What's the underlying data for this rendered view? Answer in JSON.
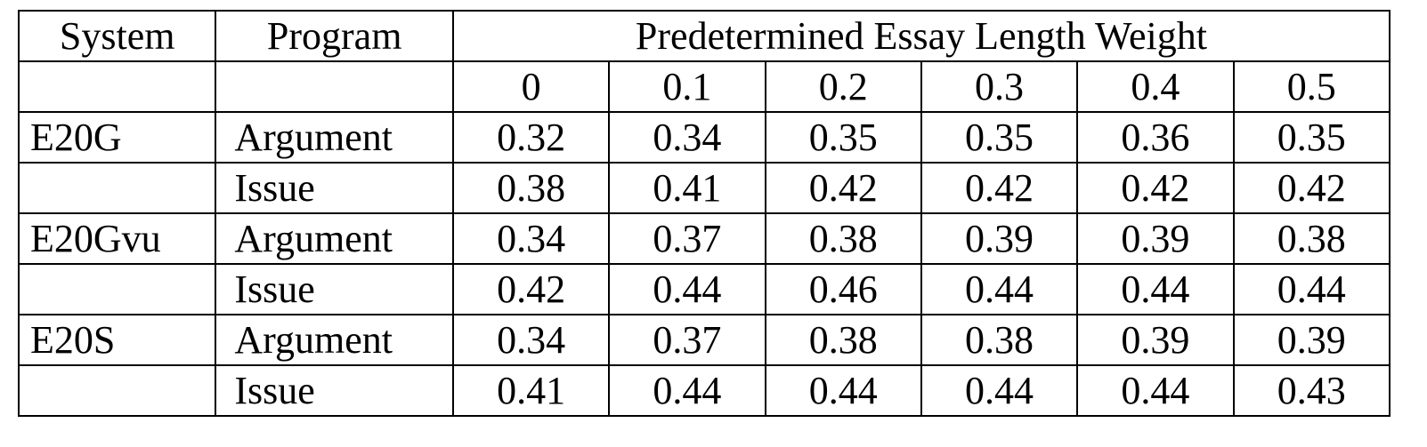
{
  "table": {
    "header": {
      "system": "System",
      "program": "Program",
      "weight_group": "Predetermined Essay Length Weight"
    },
    "weights": [
      "0",
      "0.1",
      "0.2",
      "0.3",
      "0.4",
      "0.5"
    ],
    "rows": [
      {
        "system": "E20G",
        "program": "Argument",
        "values": [
          "0.32",
          "0.34",
          "0.35",
          "0.35",
          "0.36",
          "0.35"
        ]
      },
      {
        "system": "",
        "program": "Issue",
        "values": [
          "0.38",
          "0.41",
          "0.42",
          "0.42",
          "0.42",
          "0.42"
        ]
      },
      {
        "system": "E20Gvu",
        "program": "Argument",
        "values": [
          "0.34",
          "0.37",
          "0.38",
          "0.39",
          "0.39",
          "0.38"
        ]
      },
      {
        "system": "",
        "program": "Issue",
        "values": [
          "0.42",
          "0.44",
          "0.46",
          "0.44",
          "0.44",
          "0.44"
        ]
      },
      {
        "system": "E20S",
        "program": "Argument",
        "values": [
          "0.34",
          "0.37",
          "0.38",
          "0.38",
          "0.39",
          "0.39"
        ]
      },
      {
        "system": "",
        "program": "Issue",
        "values": [
          "0.41",
          "0.44",
          "0.44",
          "0.44",
          "0.44",
          "0.43"
        ]
      }
    ]
  }
}
